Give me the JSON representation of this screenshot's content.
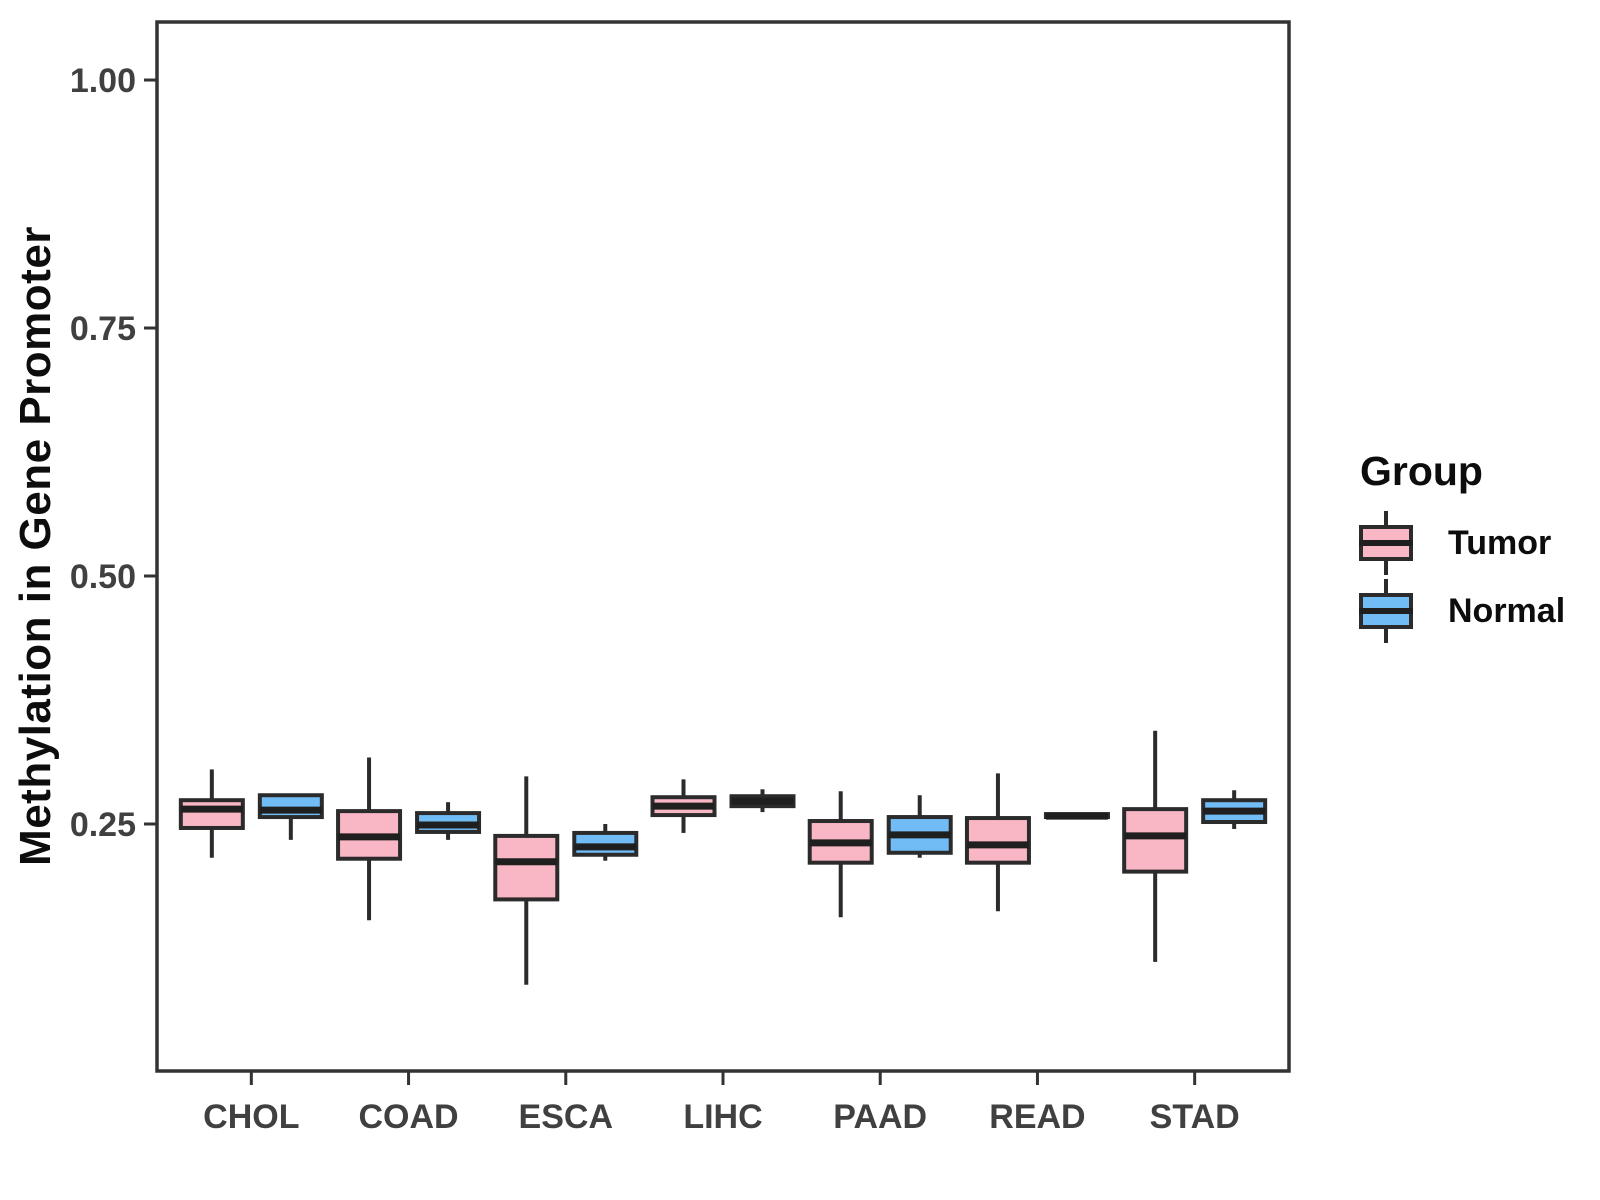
{
  "chart_data": {
    "type": "box",
    "title": "",
    "xlabel": "",
    "ylabel": "Methylation in Gene Promoter",
    "ylim": [
      0.0,
      1.06
    ],
    "y_ticks": [
      {
        "value": 0.25,
        "label": "0.25"
      },
      {
        "value": 0.5,
        "label": "0.50"
      },
      {
        "value": 0.75,
        "label": "0.75"
      },
      {
        "value": 1.0,
        "label": "1.00"
      }
    ],
    "categories": [
      "CHOL",
      "COAD",
      "ESCA",
      "LIHC",
      "PAAD",
      "READ",
      "STAD"
    ],
    "legend_title": "Group",
    "legend_position": "right",
    "grid": false,
    "series": [
      {
        "name": "Tumor",
        "fill_color": "#F9B6C5",
        "data": [
          {
            "category": "CHOL",
            "min": 0.216,
            "q1": 0.246,
            "median": 0.265,
            "q3": 0.274,
            "max": 0.305
          },
          {
            "category": "COAD",
            "min": 0.153,
            "q1": 0.215,
            "median": 0.237,
            "q3": 0.263,
            "max": 0.317
          },
          {
            "category": "ESCA",
            "min": 0.088,
            "q1": 0.174,
            "median": 0.212,
            "q3": 0.238,
            "max": 0.298
          },
          {
            "category": "LIHC",
            "min": 0.241,
            "q1": 0.259,
            "median": 0.268,
            "q3": 0.277,
            "max": 0.295
          },
          {
            "category": "PAAD",
            "min": 0.156,
            "q1": 0.211,
            "median": 0.231,
            "q3": 0.253,
            "max": 0.283
          },
          {
            "category": "READ",
            "min": 0.162,
            "q1": 0.211,
            "median": 0.229,
            "q3": 0.256,
            "max": 0.301
          },
          {
            "category": "STAD",
            "min": 0.111,
            "q1": 0.202,
            "median": 0.238,
            "q3": 0.265,
            "max": 0.344
          }
        ]
      },
      {
        "name": "Normal",
        "fill_color": "#72BCF5",
        "data": [
          {
            "category": "CHOL",
            "min": 0.234,
            "q1": 0.257,
            "median": 0.264,
            "q3": 0.279,
            "max": 0.279
          },
          {
            "category": "COAD",
            "min": 0.234,
            "q1": 0.242,
            "median": 0.249,
            "q3": 0.261,
            "max": 0.272
          },
          {
            "category": "ESCA",
            "min": 0.213,
            "q1": 0.219,
            "median": 0.227,
            "q3": 0.241,
            "max": 0.25
          },
          {
            "category": "LIHC",
            "min": 0.262,
            "q1": 0.268,
            "median": 0.273,
            "q3": 0.278,
            "max": 0.285
          },
          {
            "category": "PAAD",
            "min": 0.216,
            "q1": 0.221,
            "median": 0.239,
            "q3": 0.257,
            "max": 0.279
          },
          {
            "category": "READ",
            "min": 0.256,
            "q1": 0.257,
            "median": 0.258,
            "q3": 0.26,
            "max": 0.261
          },
          {
            "category": "STAD",
            "min": 0.245,
            "q1": 0.252,
            "median": 0.263,
            "q3": 0.274,
            "max": 0.284
          }
        ]
      }
    ]
  },
  "colors": {
    "tumor_fill": "#F9B6C5",
    "normal_fill": "#72BCF5",
    "box_border": "#2b2b2b",
    "median_line": "#1f1f1f",
    "panel_border": "#333333",
    "axis_tick": "#333333",
    "axis_text": "#404040",
    "title_text": "#0d0d0d"
  },
  "legend": {
    "title": "Group",
    "items": [
      {
        "label": "Tumor",
        "color": "#F9B6C5"
      },
      {
        "label": "Normal",
        "color": "#72BCF5"
      }
    ]
  }
}
